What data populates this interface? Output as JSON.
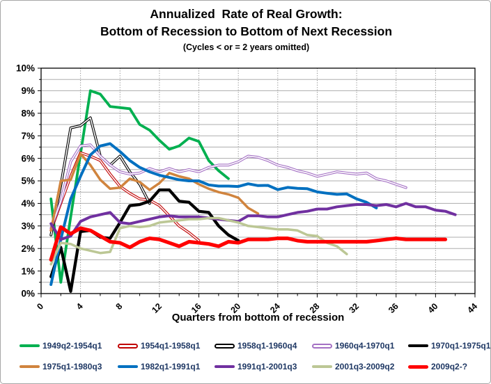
{
  "title": {
    "line1": "Annualized  Rate of Real Growth:",
    "line2": "Bottom of Recession to Bottom of Next Recession",
    "subtitle": "(Cycles < or = 2 years omitted)"
  },
  "legend": {
    "text_color": "#1F3864",
    "rows": 2,
    "position": "bottom"
  },
  "chart_data": {
    "type": "line",
    "title": "Annualized Rate of Real Growth: Bottom of Recession to Bottom of Next Recession",
    "xlabel": "Quarters from bottom of recession",
    "ylabel": "",
    "x_axis": {
      "min": 0,
      "max": 44,
      "label_step": 4,
      "minor_tick_step": 2,
      "tick_labels": [
        "0",
        "4",
        "8",
        "12",
        "16",
        "20",
        "24",
        "28",
        "32",
        "36",
        "40",
        "44"
      ]
    },
    "y_axis": {
      "min": 0,
      "max": 10,
      "label_step": 1,
      "grid_step": 0.5,
      "tick_labels": [
        "0%",
        "1%",
        "2%",
        "3%",
        "4%",
        "5%",
        "6%",
        "7%",
        "8%",
        "9%",
        "10%"
      ]
    },
    "grid": {
      "horizontal_solid_every": 0.5,
      "vertical_dotted_every": 4
    },
    "x_start": 1,
    "x_step": 1,
    "series": [
      {
        "name": "1949q2-1954q1",
        "color": "#00B050",
        "style": "solid",
        "width": 3.8,
        "values": [
          4.2,
          0.5,
          3.4,
          6.2,
          9.0,
          8.85,
          8.3,
          8.25,
          8.2,
          7.5,
          7.25,
          6.8,
          6.4,
          6.55,
          6.9,
          6.75,
          5.9,
          5.45,
          5.1
        ]
      },
      {
        "name": "1954q1-1958q1",
        "color": "#C00000",
        "style": "double",
        "width": 3.8,
        "values": [
          2.8,
          4.0,
          5.2,
          6.25,
          6.1,
          5.9,
          5.3,
          4.75,
          4.45,
          4.2,
          4.15,
          3.9,
          3.45,
          3.0,
          2.7,
          2.35
        ]
      },
      {
        "name": "1958q1-1960q4",
        "color": "#000000",
        "style": "double",
        "width": 3.8,
        "values": [
          2.6,
          4.8,
          7.35,
          7.45,
          7.8,
          6.1,
          5.7,
          6.1,
          5.4,
          4.85,
          4.0
        ]
      },
      {
        "name": "1960q4-1970q1",
        "color": "#A470C4",
        "style": "double",
        "width": 3.8,
        "values": [
          2.9,
          4.1,
          5.85,
          6.55,
          6.6,
          6.1,
          5.7,
          5.4,
          5.3,
          5.35,
          5.55,
          5.4,
          5.55,
          5.4,
          5.5,
          5.4,
          5.6,
          5.7,
          5.7,
          5.85,
          6.1,
          6.05,
          5.9,
          5.7,
          5.6,
          5.45,
          5.35,
          5.2,
          5.3,
          5.4,
          5.35,
          5.3,
          5.35,
          5.1,
          5.0,
          4.85,
          4.7
        ]
      },
      {
        "name": "1970q1-1975q1",
        "color": "#000000",
        "style": "solid",
        "width": 4.3,
        "values": [
          0.75,
          2.05,
          0.1,
          2.75,
          2.8,
          2.5,
          2.45,
          3.15,
          3.9,
          3.95,
          4.1,
          4.6,
          4.6,
          4.1,
          4.05,
          3.65,
          3.6,
          3.0,
          2.6,
          2.35
        ]
      },
      {
        "name": "1975q1-1980q3",
        "color": "#D0843E",
        "style": "solid",
        "width": 3.5,
        "values": [
          2.8,
          5.0,
          5.05,
          6.2,
          5.7,
          5.05,
          4.65,
          4.7,
          5.1,
          4.95,
          4.6,
          4.9,
          5.35,
          5.2,
          5.1,
          4.85,
          4.65,
          4.5,
          4.4,
          4.25,
          3.8,
          3.55
        ]
      },
      {
        "name": "1982q1-1991q1",
        "color": "#0070C0",
        "style": "solid",
        "width": 4.0,
        "values": [
          0.4,
          2.4,
          4.2,
          5.2,
          6.15,
          6.55,
          6.65,
          6.3,
          5.9,
          5.6,
          5.4,
          5.25,
          5.15,
          5.05,
          5.0,
          5.0,
          4.82,
          4.77,
          4.77,
          4.75,
          4.87,
          4.79,
          4.8,
          4.61,
          4.71,
          4.67,
          4.65,
          4.51,
          4.45,
          4.4,
          4.42,
          4.2,
          4.05,
          3.8
        ]
      },
      {
        "name": "1991q1-2001q3",
        "color": "#7030A0",
        "style": "solid",
        "width": 4.0,
        "values": [
          3.1,
          2.4,
          2.55,
          3.2,
          3.4,
          3.5,
          3.6,
          3.15,
          3.1,
          3.2,
          3.3,
          3.4,
          3.45,
          3.4,
          3.4,
          3.4,
          3.35,
          3.3,
          3.25,
          3.2,
          3.45,
          3.45,
          3.4,
          3.4,
          3.5,
          3.6,
          3.65,
          3.75,
          3.75,
          3.85,
          3.9,
          3.95,
          3.95,
          3.9,
          3.95,
          3.85,
          4.0,
          3.85,
          3.85,
          3.7,
          3.65,
          3.5
        ]
      },
      {
        "name": "2001q3-2009q2",
        "color": "#BCC795",
        "style": "solid",
        "width": 3.5,
        "values": [
          1.3,
          2.25,
          2.2,
          2.0,
          1.9,
          1.8,
          1.85,
          2.9,
          3.0,
          2.95,
          3.0,
          3.15,
          3.2,
          3.25,
          3.3,
          3.3,
          3.35,
          3.35,
          3.25,
          3.15,
          3.0,
          2.95,
          2.9,
          2.85,
          2.85,
          2.8,
          2.6,
          2.55,
          2.25,
          2.1,
          1.75
        ]
      },
      {
        "name": "2009q2-?",
        "color": "#FF0000",
        "style": "solid",
        "width": 5.2,
        "values": [
          1.5,
          2.95,
          2.65,
          2.9,
          2.8,
          2.55,
          2.3,
          2.25,
          2.05,
          2.3,
          2.45,
          2.4,
          2.25,
          2.1,
          2.3,
          2.25,
          2.2,
          2.1,
          2.3,
          2.25,
          2.4,
          2.4,
          2.4,
          2.45,
          2.45,
          2.35,
          2.3,
          2.3,
          2.3,
          2.3,
          2.3,
          2.3,
          2.3,
          2.35,
          2.4,
          2.45,
          2.4,
          2.4,
          2.4,
          2.4,
          2.4
        ]
      }
    ]
  }
}
